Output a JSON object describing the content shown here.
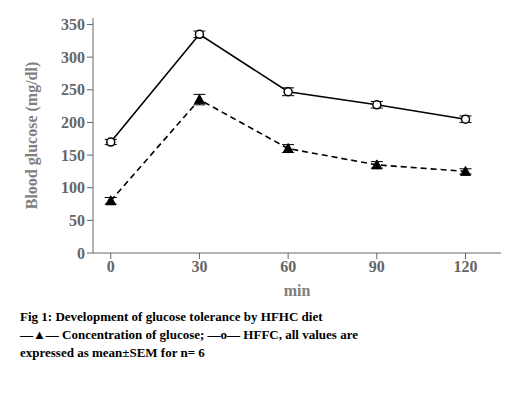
{
  "chart_data": {
    "type": "line",
    "x": [
      0,
      30,
      60,
      90,
      120
    ],
    "series": [
      {
        "color": "#000000",
        "marker": "triangle",
        "line_style": "dashed",
        "values": [
          80,
          235,
          160,
          135,
          125
        ],
        "errors": [
          5,
          8,
          6,
          5,
          4
        ]
      },
      {
        "color": "#000000",
        "marker": "circle",
        "line_style": "solid",
        "values": [
          170,
          335,
          247,
          227,
          205
        ],
        "errors": [
          4,
          5,
          6,
          5,
          5
        ]
      }
    ],
    "xlabel": "min",
    "ylabel": "Blood glucose (mg/dl)",
    "xlim": [
      -6,
      132
    ],
    "xticks": [
      0,
      30,
      60,
      90,
      120
    ],
    "ylim": [
      0,
      360
    ],
    "yticks": [
      0,
      50,
      100,
      150,
      200,
      250,
      300,
      350
    ],
    "grid": false,
    "annotations": [
      "Fig 1: Development of glucose tolerance by HFHC diet",
      "—▲— Concentration of glucose; —o— HFFC, all values are",
      "expressed as mean±SEM for n= 6"
    ]
  }
}
